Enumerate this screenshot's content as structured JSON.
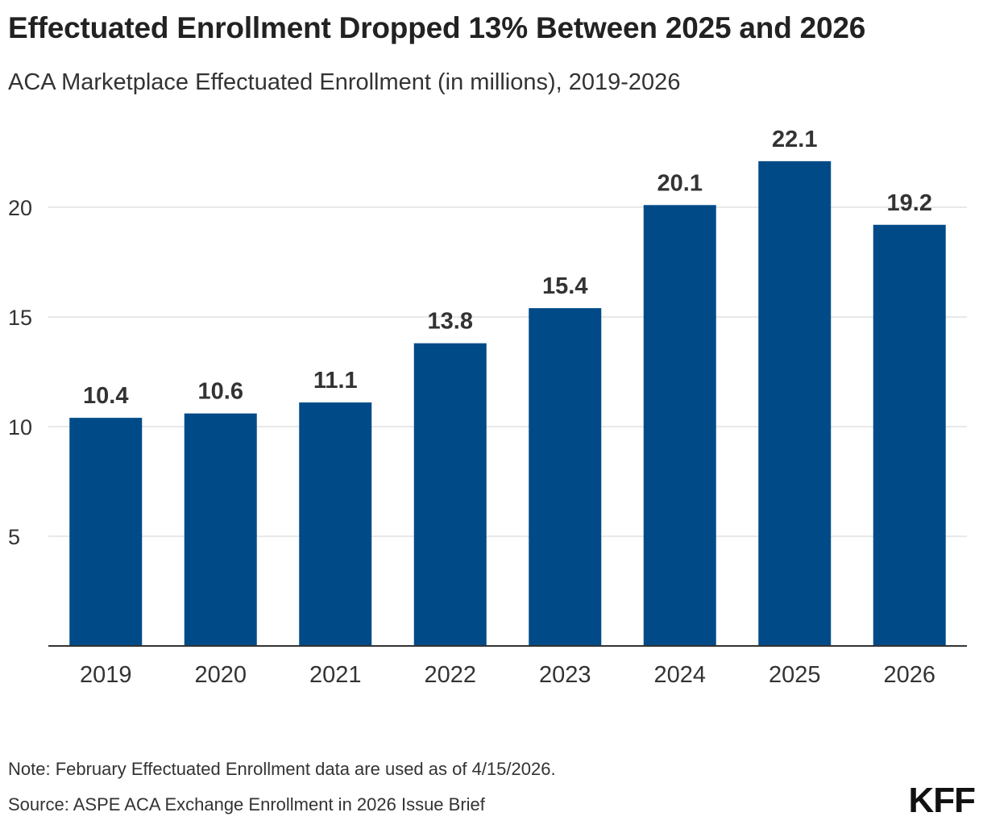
{
  "chart_data": {
    "type": "bar",
    "title": "Effectuated Enrollment Dropped 13% Between 2025 and 2026",
    "subtitle": "ACA Marketplace Effectuated Enrollment (in millions), 2019-2026",
    "categories": [
      "2019",
      "2020",
      "2021",
      "2022",
      "2023",
      "2024",
      "2025",
      "2026"
    ],
    "values": [
      10.4,
      10.6,
      11.1,
      13.8,
      15.4,
      20.1,
      22.1,
      19.2
    ],
    "data_labels": [
      "10.4",
      "10.6",
      "11.1",
      "13.8",
      "15.4",
      "20.1",
      "22.1",
      "19.2"
    ],
    "yticks": [
      5,
      10,
      15,
      20
    ],
    "ylim": [
      0,
      24
    ],
    "xlabel": "",
    "ylabel": "",
    "grid": true,
    "bar_color": "#004b87"
  },
  "note": "Note: February Effectuated Enrollment data are used as of 4/15/2026.",
  "source": "Source: ASPE ACA Exchange Enrollment in 2026 Issue Brief",
  "logo": "KFF"
}
